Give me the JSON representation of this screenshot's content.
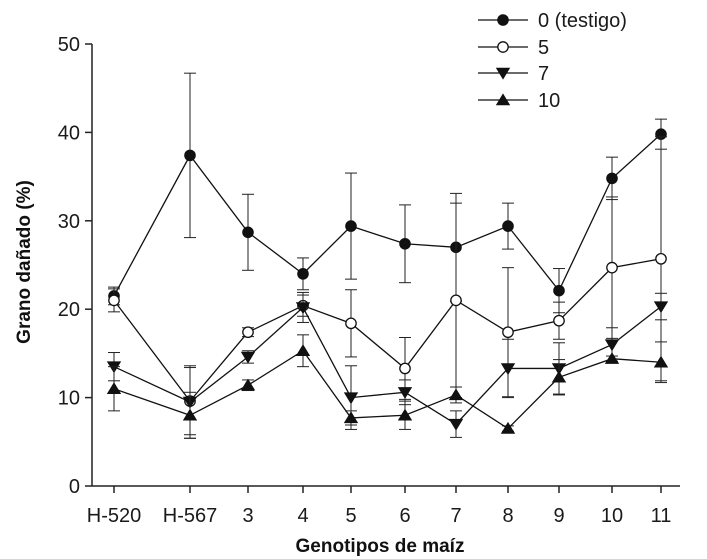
{
  "chart_data": {
    "type": "line",
    "title": "",
    "xlabel": "Genotipos de maíz",
    "ylabel": "Grano dañado (%)",
    "ylim": [
      0,
      50
    ],
    "yticks": [
      0,
      10,
      20,
      30,
      40,
      50
    ],
    "categories": [
      "H-520",
      "H-567",
      "3",
      "4",
      "5",
      "6",
      "7",
      "8",
      "9",
      "10",
      "11"
    ],
    "legend_position": "top-right",
    "grid": false,
    "series": [
      {
        "name": "0 (testigo)",
        "marker": "circle-filled",
        "values": [
          21.5,
          37.4,
          28.7,
          24.0,
          29.4,
          27.4,
          27.0,
          29.4,
          22.1,
          34.8,
          39.8
        ],
        "errors": [
          1.0,
          9.3,
          4.3,
          1.8,
          6.0,
          4.4,
          6.1,
          2.6,
          2.5,
          2.4,
          1.7
        ]
      },
      {
        "name": "5",
        "marker": "circle-open",
        "values": [
          21.0,
          9.6,
          17.4,
          20.4,
          18.4,
          13.3,
          21.0,
          17.4,
          18.7,
          24.7,
          25.7
        ],
        "errors": [
          1.3,
          3.8,
          0.5,
          1.2,
          3.8,
          3.5,
          11.0,
          7.3,
          2.1,
          8.0,
          13.8
        ]
      },
      {
        "name": "7",
        "marker": "triangle-down-filled",
        "values": [
          13.5,
          9.5,
          14.6,
          20.2,
          10.0,
          10.6,
          7.0,
          13.3,
          13.3,
          16.0,
          20.3
        ],
        "errors": [
          1.6,
          4.1,
          0.7,
          1.7,
          3.6,
          1.4,
          1.5,
          3.3,
          2.9,
          1.9,
          1.5
        ]
      },
      {
        "name": "10",
        "marker": "triangle-up-filled",
        "values": [
          11.0,
          8.0,
          11.4,
          15.3,
          7.7,
          8.0,
          10.3,
          6.5,
          12.3,
          14.4,
          14.0
        ],
        "errors": [
          2.5,
          2.6,
          0.6,
          1.8,
          0.8,
          1.6,
          0.9,
          0.3,
          2.0,
          0.3,
          2.3
        ]
      }
    ]
  }
}
